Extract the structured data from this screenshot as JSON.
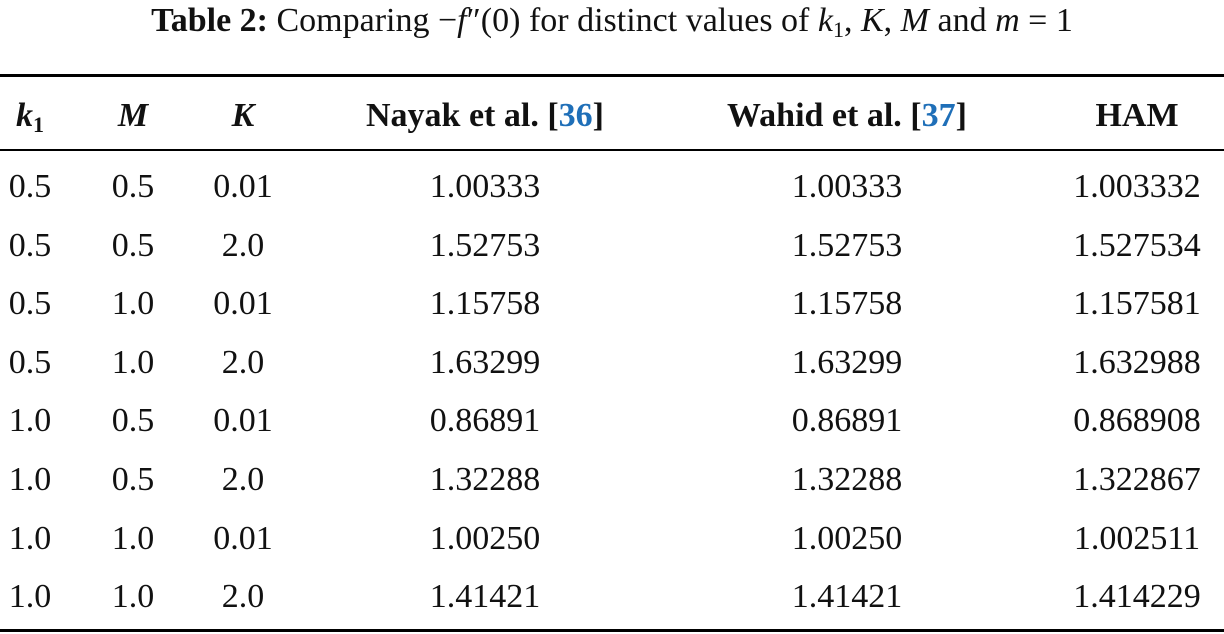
{
  "caption": {
    "label": "Table 2:",
    "parts": [
      "Comparing ",
      "−",
      "f",
      "″",
      "(0)",
      " for distinct values of ",
      "k",
      "1",
      ", ",
      "K",
      ", ",
      "M",
      " and ",
      "m",
      " = 1"
    ]
  },
  "table": {
    "columns": [
      {
        "label": "k",
        "sub": "1"
      },
      {
        "label": "M"
      },
      {
        "label": "K"
      },
      {
        "label": "Nayak et al. [",
        "ref": "36",
        "end": "]"
      },
      {
        "label": "Wahid et al. [",
        "ref": "37",
        "end": "]"
      },
      {
        "label": "HAM"
      }
    ],
    "rows": [
      [
        "0.5",
        "0.5",
        "0.01",
        "1.00333",
        "1.00333",
        "1.003332"
      ],
      [
        "0.5",
        "0.5",
        "2.0",
        "1.52753",
        "1.52753",
        "1.527534"
      ],
      [
        "0.5",
        "1.0",
        "0.01",
        "1.15758",
        "1.15758",
        "1.157581"
      ],
      [
        "0.5",
        "1.0",
        "2.0",
        "1.63299",
        "1.63299",
        "1.632988"
      ],
      [
        "1.0",
        "0.5",
        "0.01",
        "0.86891",
        "0.86891",
        "0.868908"
      ],
      [
        "1.0",
        "0.5",
        "2.0",
        "1.32288",
        "1.32288",
        "1.322867"
      ],
      [
        "1.0",
        "1.0",
        "0.01",
        "1.00250",
        "1.00250",
        "1.002511"
      ],
      [
        "1.0",
        "1.0",
        "2.0",
        "1.41421",
        "1.41421",
        "1.414229"
      ]
    ]
  }
}
